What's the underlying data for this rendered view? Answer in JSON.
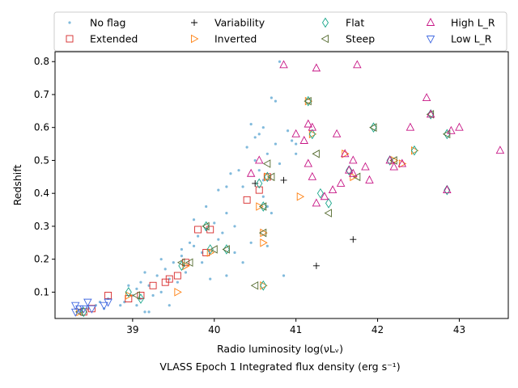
{
  "chart_data": {
    "type": "scatter",
    "xlabel": "Radio luminosity log(νLᵥ)",
    "xlabel_secondary": "VLASS Epoch 1 Integrated flux density (erg s⁻¹)",
    "ylabel": "Redshift",
    "xlim": [
      38.05,
      43.6
    ],
    "ylim": [
      0.02,
      0.83
    ],
    "xticks": [
      39,
      40,
      41,
      42,
      43
    ],
    "yticks": [
      0.1,
      0.2,
      0.3,
      0.4,
      0.5,
      0.6,
      0.7,
      0.8
    ],
    "legend": {
      "placement": "top",
      "entries": [
        {
          "key": "noflag",
          "label": "No flag"
        },
        {
          "key": "extended",
          "label": "Extended"
        },
        {
          "key": "variability",
          "label": "Variability"
        },
        {
          "key": "inverted",
          "label": "Inverted"
        },
        {
          "key": "flat",
          "label": "Flat"
        },
        {
          "key": "steep",
          "label": "Steep"
        },
        {
          "key": "highlr",
          "label": "High L_R"
        },
        {
          "key": "lowlr",
          "label": "Low L_R"
        }
      ]
    },
    "colors": {
      "noflag": "#6baed6",
      "extended": "#d62728",
      "variability": "#000000",
      "inverted": "#ff7f0e",
      "flat": "#17a589",
      "steep": "#556b2f",
      "highlr": "#c71585",
      "lowlr": "#4169e1"
    },
    "series": [
      {
        "key": "noflag",
        "name": "No flag",
        "points": [
          [
            38.45,
            0.05
          ],
          [
            38.55,
            0.06
          ],
          [
            38.6,
            0.07
          ],
          [
            38.65,
            0.05
          ],
          [
            38.7,
            0.08
          ],
          [
            38.85,
            0.06
          ],
          [
            38.9,
            0.07
          ],
          [
            38.95,
            0.12
          ],
          [
            39.0,
            0.09
          ],
          [
            39.05,
            0.11
          ],
          [
            39.1,
            0.13
          ],
          [
            39.15,
            0.04
          ],
          [
            39.15,
            0.16
          ],
          [
            39.2,
            0.04
          ],
          [
            39.2,
            0.12
          ],
          [
            39.25,
            0.09
          ],
          [
            39.3,
            0.15
          ],
          [
            39.35,
            0.2
          ],
          [
            39.4,
            0.17
          ],
          [
            39.45,
            0.14
          ],
          [
            39.45,
            0.06
          ],
          [
            39.5,
            0.19
          ],
          [
            39.55,
            0.13
          ],
          [
            39.6,
            0.21
          ],
          [
            39.65,
            0.16
          ],
          [
            39.7,
            0.25
          ],
          [
            39.75,
            0.24
          ],
          [
            39.75,
            0.32
          ],
          [
            39.8,
            0.27
          ],
          [
            39.85,
            0.22
          ],
          [
            39.9,
            0.29
          ],
          [
            39.9,
            0.36
          ],
          [
            39.95,
            0.14
          ],
          [
            40.0,
            0.31
          ],
          [
            40.05,
            0.26
          ],
          [
            40.1,
            0.28
          ],
          [
            40.15,
            0.34
          ],
          [
            40.15,
            0.42
          ],
          [
            40.2,
            0.46
          ],
          [
            40.25,
            0.3
          ],
          [
            40.3,
            0.47
          ],
          [
            40.35,
            0.42
          ],
          [
            40.35,
            0.19
          ],
          [
            40.4,
            0.54
          ],
          [
            40.45,
            0.61
          ],
          [
            40.5,
            0.57
          ],
          [
            40.5,
            0.5
          ],
          [
            40.55,
            0.47
          ],
          [
            40.55,
            0.58
          ],
          [
            40.6,
            0.44
          ],
          [
            40.6,
            0.6
          ],
          [
            40.65,
            0.52
          ],
          [
            40.65,
            0.36
          ],
          [
            40.7,
            0.69
          ],
          [
            40.75,
            0.55
          ],
          [
            40.75,
            0.68
          ],
          [
            40.8,
            0.8
          ],
          [
            40.8,
            0.49
          ],
          [
            40.85,
            0.15
          ],
          [
            40.9,
            0.59
          ],
          [
            40.95,
            0.56
          ],
          [
            41.0,
            0.52
          ],
          [
            41.0,
            0.55
          ],
          [
            40.7,
            0.34
          ],
          [
            40.65,
            0.24
          ],
          [
            40.6,
            0.39
          ],
          [
            40.45,
            0.25
          ],
          [
            39.6,
            0.23
          ],
          [
            39.35,
            0.1
          ],
          [
            39.1,
            0.08
          ],
          [
            40.05,
            0.41
          ],
          [
            40.25,
            0.22
          ],
          [
            39.85,
            0.19
          ],
          [
            40.15,
            0.15
          ],
          [
            39.05,
            0.06
          ]
        ]
      },
      {
        "key": "extended",
        "name": "Extended",
        "points": [
          [
            38.4,
            0.04
          ],
          [
            38.5,
            0.05
          ],
          [
            38.7,
            0.09
          ],
          [
            38.95,
            0.08
          ],
          [
            39.1,
            0.09
          ],
          [
            39.25,
            0.12
          ],
          [
            39.4,
            0.13
          ],
          [
            39.45,
            0.14
          ],
          [
            39.55,
            0.15
          ],
          [
            39.65,
            0.19
          ],
          [
            39.8,
            0.29
          ],
          [
            39.9,
            0.22
          ],
          [
            39.95,
            0.29
          ],
          [
            40.4,
            0.38
          ],
          [
            40.55,
            0.41
          ],
          [
            40.65,
            0.45
          ]
        ]
      },
      {
        "key": "variability",
        "name": "Variability",
        "points": [
          [
            40.5,
            0.43
          ],
          [
            40.85,
            0.44
          ],
          [
            41.7,
            0.26
          ],
          [
            41.25,
            0.18
          ]
        ]
      },
      {
        "key": "inverted",
        "name": "Inverted",
        "points": [
          [
            38.35,
            0.04
          ],
          [
            38.95,
            0.09
          ],
          [
            39.55,
            0.1
          ],
          [
            39.65,
            0.18
          ],
          [
            39.95,
            0.22
          ],
          [
            40.55,
            0.36
          ],
          [
            40.6,
            0.28
          ],
          [
            40.6,
            0.25
          ],
          [
            40.6,
            0.12
          ],
          [
            40.65,
            0.45
          ],
          [
            41.05,
            0.39
          ],
          [
            41.15,
            0.68
          ],
          [
            41.2,
            0.58
          ],
          [
            41.6,
            0.52
          ],
          [
            41.7,
            0.45
          ],
          [
            42.2,
            0.5
          ],
          [
            42.3,
            0.49
          ],
          [
            42.45,
            0.53
          ]
        ]
      },
      {
        "key": "flat",
        "name": "Flat",
        "points": [
          [
            38.4,
            0.04
          ],
          [
            38.95,
            0.1
          ],
          [
            39.1,
            0.08
          ],
          [
            39.6,
            0.18
          ],
          [
            39.9,
            0.3
          ],
          [
            39.95,
            0.23
          ],
          [
            40.15,
            0.23
          ],
          [
            40.55,
            0.43
          ],
          [
            40.6,
            0.36
          ],
          [
            40.6,
            0.12
          ],
          [
            40.65,
            0.45
          ],
          [
            41.15,
            0.68
          ],
          [
            41.2,
            0.58
          ],
          [
            41.3,
            0.4
          ],
          [
            41.4,
            0.37
          ],
          [
            41.65,
            0.47
          ],
          [
            41.95,
            0.6
          ],
          [
            42.15,
            0.5
          ],
          [
            42.45,
            0.53
          ],
          [
            42.65,
            0.64
          ],
          [
            42.85,
            0.58
          ],
          [
            42.85,
            0.41
          ]
        ]
      },
      {
        "key": "steep",
        "name": "Steep",
        "points": [
          [
            38.35,
            0.04
          ],
          [
            39.05,
            0.09
          ],
          [
            39.6,
            0.19
          ],
          [
            39.7,
            0.19
          ],
          [
            39.9,
            0.3
          ],
          [
            40.0,
            0.23
          ],
          [
            40.15,
            0.23
          ],
          [
            40.5,
            0.12
          ],
          [
            40.6,
            0.36
          ],
          [
            40.6,
            0.28
          ],
          [
            40.65,
            0.49
          ],
          [
            40.7,
            0.45
          ],
          [
            41.15,
            0.68
          ],
          [
            41.25,
            0.52
          ],
          [
            41.4,
            0.34
          ],
          [
            41.75,
            0.45
          ],
          [
            41.95,
            0.6
          ],
          [
            42.2,
            0.5
          ],
          [
            42.65,
            0.64
          ],
          [
            42.85,
            0.58
          ]
        ]
      },
      {
        "key": "highlr",
        "name": "High L_R",
        "points": [
          [
            40.45,
            0.46
          ],
          [
            40.55,
            0.5
          ],
          [
            40.85,
            0.79
          ],
          [
            41.0,
            0.58
          ],
          [
            41.1,
            0.56
          ],
          [
            41.15,
            0.49
          ],
          [
            41.15,
            0.61
          ],
          [
            41.2,
            0.6
          ],
          [
            41.2,
            0.45
          ],
          [
            41.25,
            0.37
          ],
          [
            41.25,
            0.78
          ],
          [
            41.35,
            0.39
          ],
          [
            41.45,
            0.41
          ],
          [
            41.5,
            0.58
          ],
          [
            41.55,
            0.43
          ],
          [
            41.6,
            0.52
          ],
          [
            41.65,
            0.47
          ],
          [
            41.7,
            0.5
          ],
          [
            41.7,
            0.46
          ],
          [
            41.75,
            0.79
          ],
          [
            41.85,
            0.48
          ],
          [
            41.9,
            0.44
          ],
          [
            42.15,
            0.5
          ],
          [
            42.2,
            0.48
          ],
          [
            42.3,
            0.49
          ],
          [
            42.4,
            0.6
          ],
          [
            42.6,
            0.69
          ],
          [
            42.9,
            0.59
          ],
          [
            43.0,
            0.6
          ],
          [
            43.5,
            0.53
          ],
          [
            42.85,
            0.41
          ],
          [
            42.65,
            0.64
          ]
        ]
      },
      {
        "key": "lowlr",
        "name": "Low L_R",
        "points": [
          [
            38.3,
            0.04
          ],
          [
            38.35,
            0.05
          ],
          [
            38.4,
            0.05
          ],
          [
            38.45,
            0.07
          ],
          [
            38.5,
            0.05
          ],
          [
            38.65,
            0.06
          ],
          [
            38.7,
            0.07
          ],
          [
            38.3,
            0.06
          ]
        ]
      }
    ]
  }
}
